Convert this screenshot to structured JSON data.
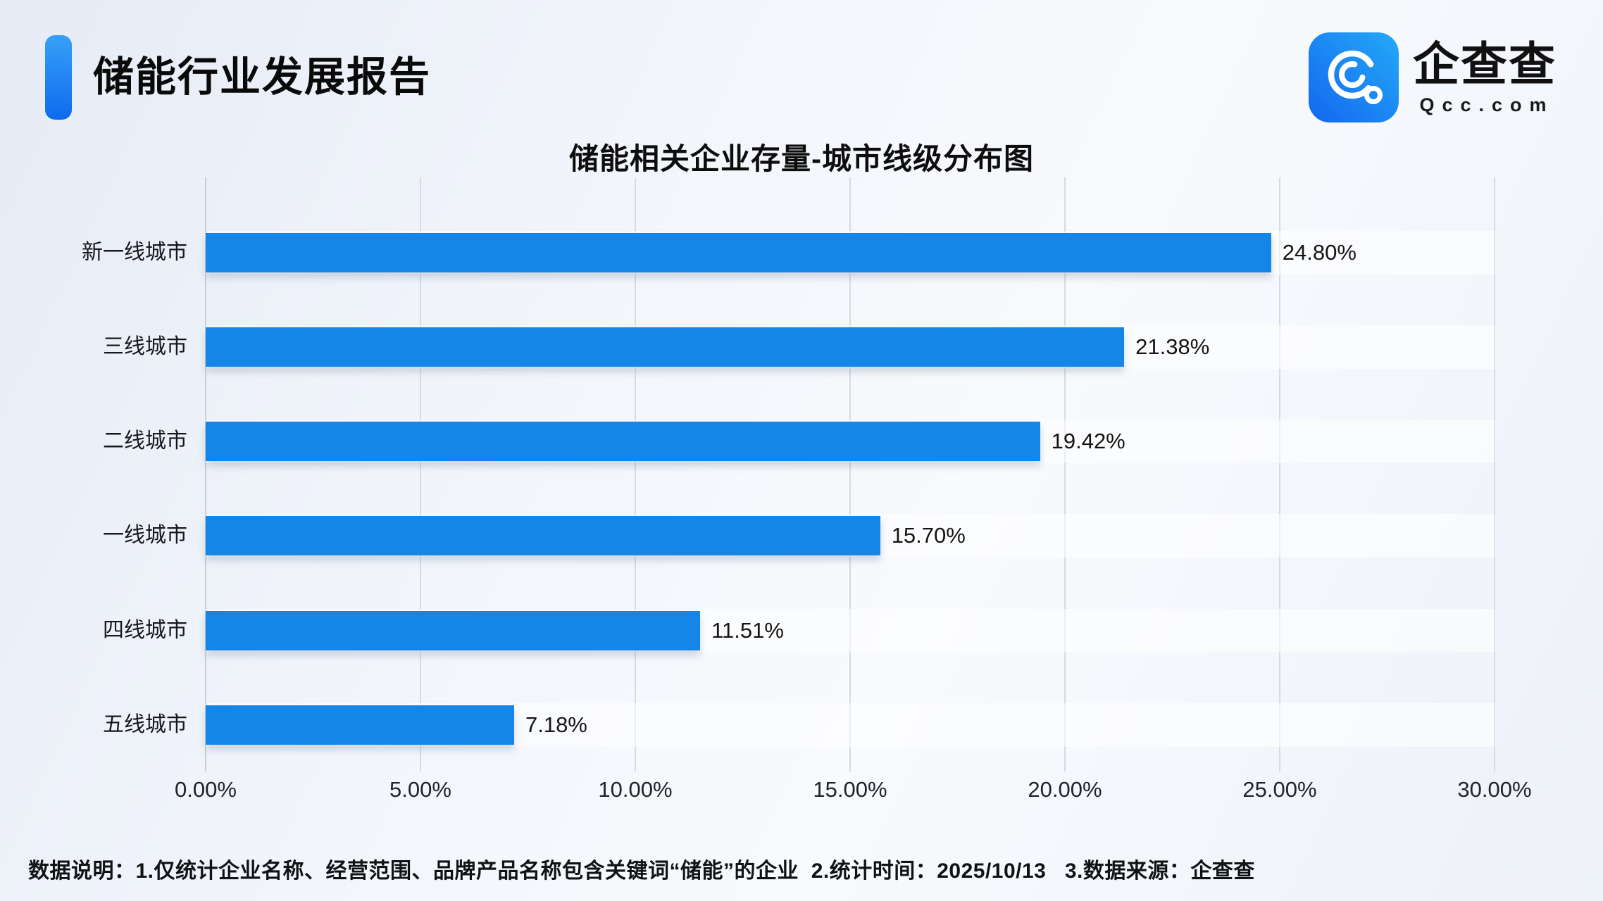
{
  "header": {
    "title": "储能行业发展报告"
  },
  "logo": {
    "brand_name": "企查查",
    "domain": "Qcc.com"
  },
  "chart_data": {
    "type": "bar",
    "orientation": "horizontal",
    "title": "储能相关企业存量-城市线级分布图",
    "categories": [
      "新一线城市",
      "三线城市",
      "二线城市",
      "一线城市",
      "四线城市",
      "五线城市"
    ],
    "values": [
      24.8,
      21.38,
      19.42,
      15.7,
      11.51,
      7.18
    ],
    "value_labels": [
      "24.80%",
      "21.38%",
      "19.42%",
      "15.70%",
      "11.51%",
      "7.18%"
    ],
    "x_ticks": [
      "0.00%",
      "5.00%",
      "10.00%",
      "15.00%",
      "20.00%",
      "25.00%",
      "30.00%"
    ],
    "xlim": [
      0,
      30
    ],
    "grid": true,
    "legend": false,
    "bar_color": "#1585e8"
  },
  "colors": {
    "bar": "#1585e8",
    "accent_top": "#38a0f8",
    "accent_bottom": "#0d6bee",
    "icon_gradient_start": "#23aaf7",
    "icon_gradient_end": "#1467ef",
    "gridline": "#d6dae4"
  },
  "footer": {
    "note": "数据说明：1.仅统计企业名称、经营范围、品牌产品名称包含关键词“储能”的企业  2.统计时间：2025/10/13   3.数据来源：企查查"
  }
}
